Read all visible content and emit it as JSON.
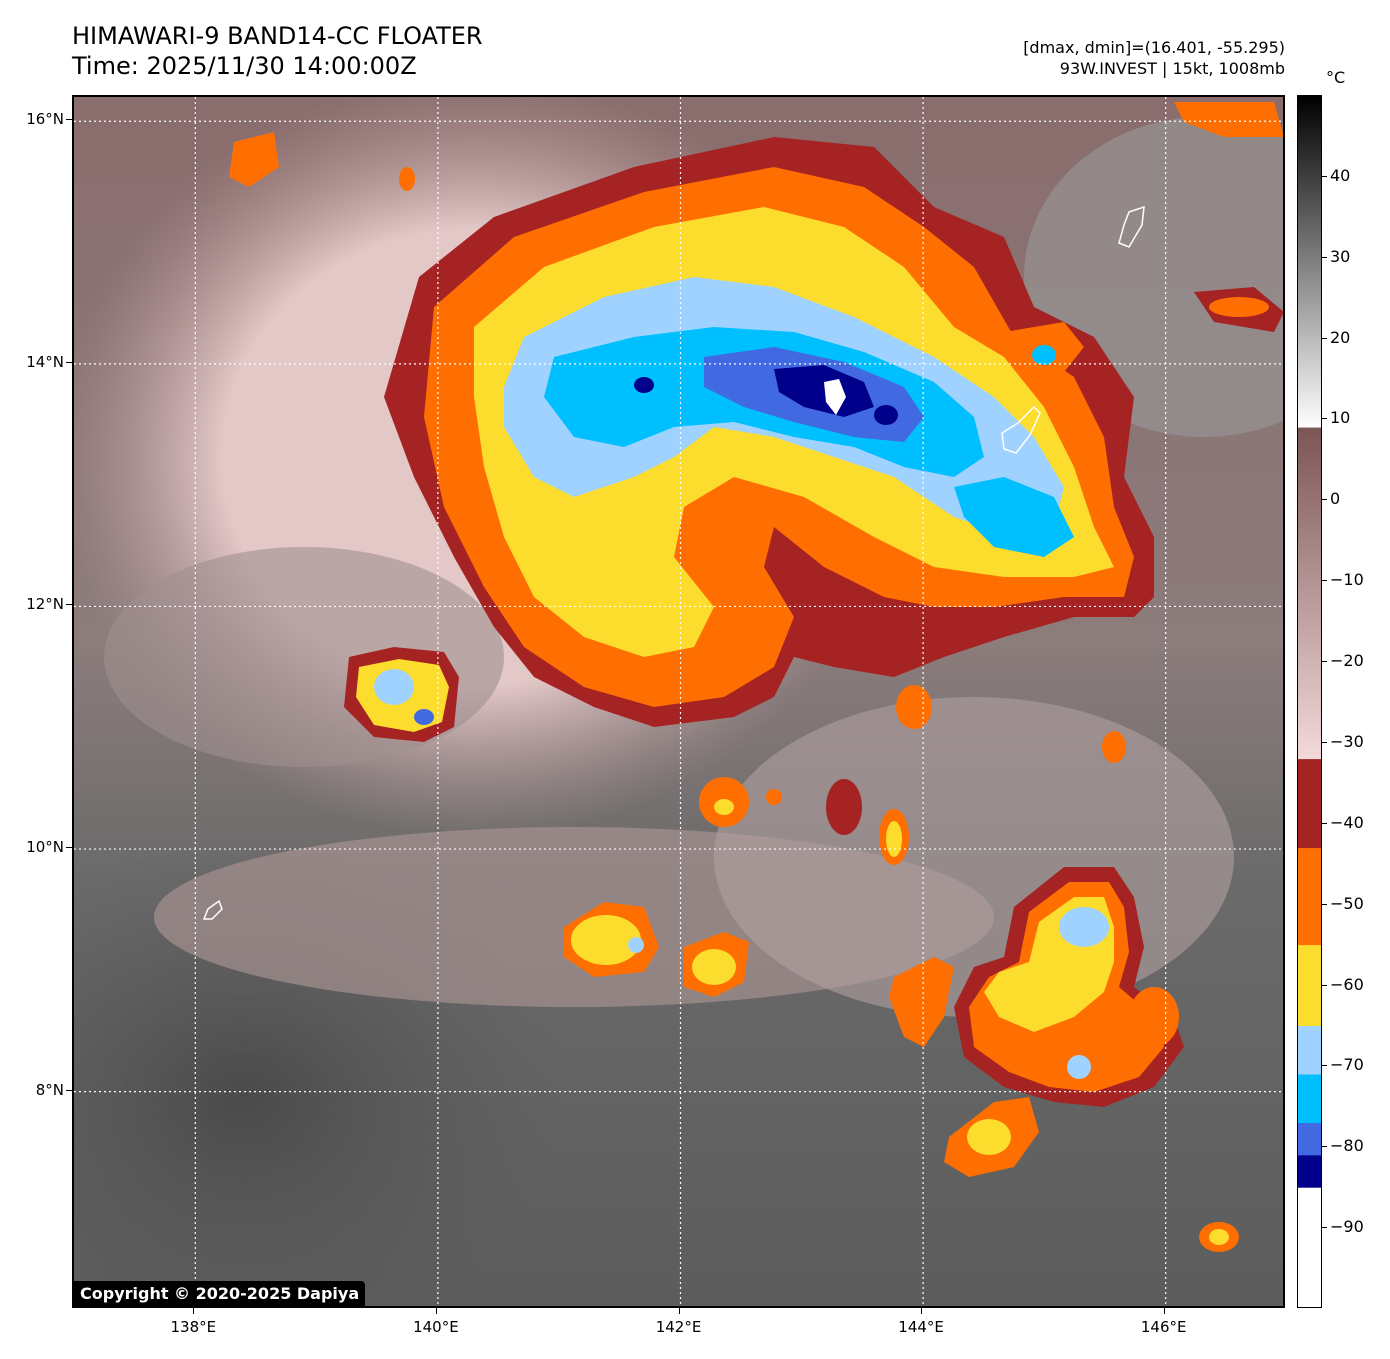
{
  "header": {
    "title_line1": "HIMAWARI-9 BAND14-CC FLOATER",
    "title_line2": "Time: 2025/11/30 14:00:00Z",
    "info_line1": "[dmax, dmin]=(16.401, -55.295)",
    "info_line2": "93W.INVEST | 15kt, 1008mb"
  },
  "map": {
    "lon_range": [
      137.0,
      147.0
    ],
    "lat_range": [
      6.2,
      16.2
    ],
    "grid": true,
    "lat_ticks": [
      {
        "value": 16,
        "label": "16°N"
      },
      {
        "value": 14,
        "label": "14°N"
      },
      {
        "value": 12,
        "label": "12°N"
      },
      {
        "value": 10,
        "label": "10°N"
      },
      {
        "value": 8,
        "label": "8°N"
      }
    ],
    "lon_ticks": [
      {
        "value": 138,
        "label": "138°E"
      },
      {
        "value": 140,
        "label": "140°E"
      },
      {
        "value": 142,
        "label": "142°E"
      },
      {
        "value": 144,
        "label": "144°E"
      },
      {
        "value": 146,
        "label": "146°E"
      }
    ],
    "copyright": "Copyright © 2020-2025 Dapiya"
  },
  "colorbar": {
    "unit": "°C",
    "range": [
      -100,
      50
    ],
    "ticks": [
      {
        "value": 40,
        "label": "40"
      },
      {
        "value": 30,
        "label": "30"
      },
      {
        "value": 20,
        "label": "20"
      },
      {
        "value": 10,
        "label": "10"
      },
      {
        "value": 0,
        "label": "0"
      },
      {
        "value": -10,
        "label": "−10"
      },
      {
        "value": -20,
        "label": "−20"
      },
      {
        "value": -30,
        "label": "−30"
      },
      {
        "value": -40,
        "label": "−40"
      },
      {
        "value": -50,
        "label": "−50"
      },
      {
        "value": -60,
        "label": "−60"
      },
      {
        "value": -70,
        "label": "−70"
      },
      {
        "value": -80,
        "label": "−80"
      },
      {
        "value": -90,
        "label": "−90"
      }
    ],
    "bands": [
      {
        "from": 9,
        "to": 50,
        "type": "gradient",
        "colors": [
          "#ffffff",
          "#000000"
        ]
      },
      {
        "from": -32,
        "to": 9,
        "type": "gradient",
        "colors": [
          "#f3dada",
          "#7c5555"
        ]
      },
      {
        "from": -43,
        "to": -32,
        "color": "#a52323"
      },
      {
        "from": -55,
        "to": -43,
        "color": "#ff6e00"
      },
      {
        "from": -65,
        "to": -55,
        "color": "#fcdc2c"
      },
      {
        "from": -71,
        "to": -65,
        "color": "#a0d2ff"
      },
      {
        "from": -77,
        "to": -71,
        "color": "#00bfff"
      },
      {
        "from": -81,
        "to": -77,
        "color": "#4169e1"
      },
      {
        "from": -85,
        "to": -81,
        "color": "#00008b"
      },
      {
        "from": -100,
        "to": -85,
        "color": "#ffffff"
      }
    ]
  },
  "palette": {
    "dark_red": "#a52323",
    "orange": "#ff6e00",
    "yellow": "#fcdc2c",
    "light_blue": "#a0d2ff",
    "cyan": "#00bfff",
    "royal_blue": "#4169e1",
    "navy": "#00008b",
    "pink_brown": "#c8a0a0",
    "gray_dark": "#5a5a5a"
  }
}
